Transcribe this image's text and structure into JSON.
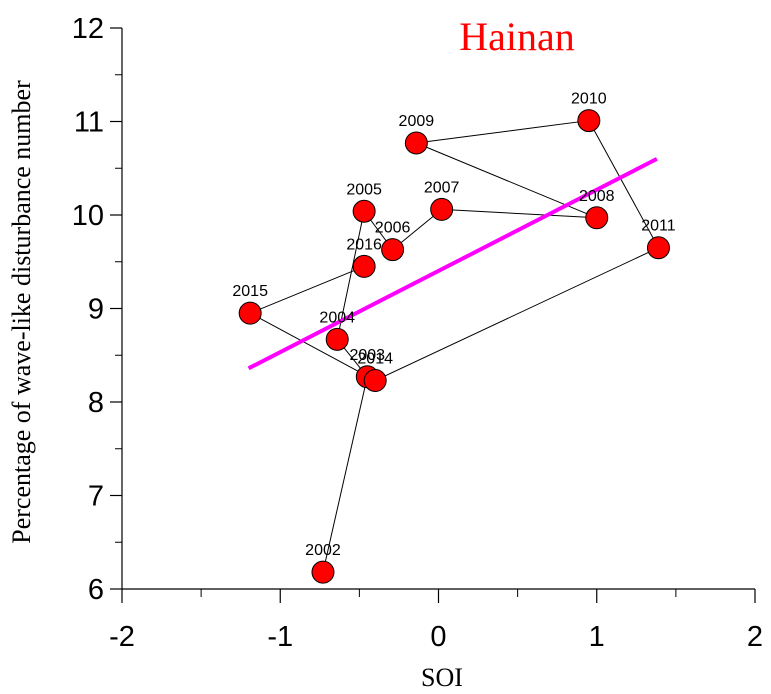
{
  "chart_data": {
    "type": "scatter",
    "title": "Hainan",
    "xlabel": "SOI",
    "ylabel": "Percentage  of wave-like disturbance number",
    "xlim": [
      -2,
      2
    ],
    "ylim": [
      6,
      12
    ],
    "xticks": [
      "-2",
      "-1",
      "0",
      "1",
      "2"
    ],
    "yticks": [
      "6",
      "7",
      "8",
      "9",
      "10",
      "11",
      "12"
    ],
    "grid": false,
    "points_connected_in_year_order": true,
    "points": [
      {
        "label": "2002",
        "x": -0.73,
        "y": 6.18
      },
      {
        "label": "2003",
        "x": -0.45,
        "y": 8.27
      },
      {
        "label": "2004",
        "x": -0.64,
        "y": 8.67
      },
      {
        "label": "2005",
        "x": -0.47,
        "y": 10.04
      },
      {
        "label": "2006",
        "x": -0.29,
        "y": 9.63
      },
      {
        "label": "2007",
        "x": 0.02,
        "y": 10.06
      },
      {
        "label": "2008",
        "x": 1.0,
        "y": 9.97
      },
      {
        "label": "2009",
        "x": -0.14,
        "y": 10.77
      },
      {
        "label": "2010",
        "x": 0.95,
        "y": 11.01
      },
      {
        "label": "2011",
        "x": 1.39,
        "y": 9.65
      },
      {
        "label": "2014",
        "x": -0.4,
        "y": 8.23
      },
      {
        "label": "2015",
        "x": -1.19,
        "y": 8.95
      },
      {
        "label": "2016",
        "x": -0.47,
        "y": 9.45
      }
    ],
    "trendline": {
      "x": [
        -1.2,
        1.38
      ],
      "y": [
        8.36,
        10.6
      ]
    },
    "colors": {
      "marker_fill": "#ff0000",
      "marker_stroke": "#000000",
      "connector": "#000000",
      "trendline": "#ff00ff",
      "title": "#ff0000"
    }
  }
}
